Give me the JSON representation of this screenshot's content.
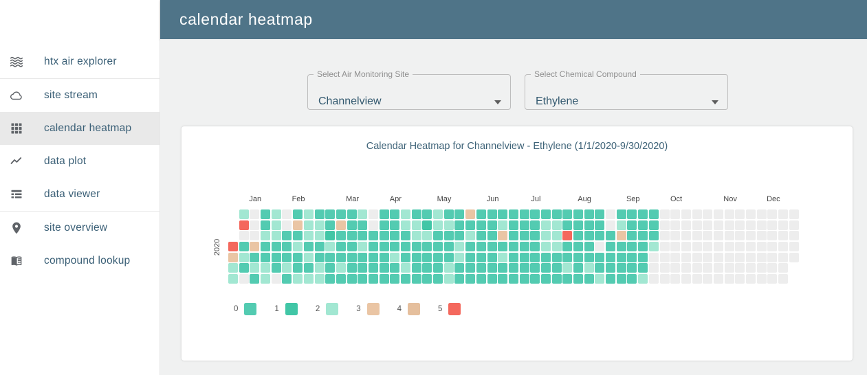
{
  "header": {
    "title": "calendar heatmap"
  },
  "sidebar": {
    "items": [
      {
        "label": "htx air explorer",
        "icon": "waves-icon",
        "active": false,
        "divider_after": true
      },
      {
        "label": "site stream",
        "icon": "cloud-icon",
        "active": false,
        "divider_after": false
      },
      {
        "label": "calendar heatmap",
        "icon": "grid-icon",
        "active": true,
        "divider_after": false
      },
      {
        "label": "data plot",
        "icon": "line-chart-icon",
        "active": false,
        "divider_after": false
      },
      {
        "label": "data viewer",
        "icon": "list-icon",
        "active": false,
        "divider_after": true
      },
      {
        "label": "site overview",
        "icon": "location-pin-icon",
        "active": false,
        "divider_after": false
      },
      {
        "label": "compound lookup",
        "icon": "book-icon",
        "active": false,
        "divider_after": false
      }
    ]
  },
  "filters": {
    "site_select": {
      "label": "Select Air Monitoring Site",
      "value": "Channelview"
    },
    "compound_select": {
      "label": "Select Chemical Compound",
      "value": "Ethylene"
    }
  },
  "chart_data": {
    "type": "heatmap",
    "title": "Calendar Heatmap for Channelview - Ethylene (1/1/2020-9/30/2020)",
    "year_label": "2020",
    "start_date": "1/1/2020",
    "end_date": "9/30/2020",
    "week_starts": "Sunday",
    "jan1_weekday_index": 3,
    "month_labels": [
      "Jan",
      "Feb",
      "Mar",
      "Apr",
      "May",
      "Jun",
      "Jul",
      "Aug",
      "Sep",
      "Oct",
      "Nov",
      "Dec"
    ],
    "days_in_month": [
      31,
      29,
      31,
      30,
      31,
      30,
      31,
      31,
      30,
      31,
      30,
      31
    ],
    "values_by_month": {
      "Jan": [
        5,
        3,
        2,
        2,
        2,
        5,
        null,
        0,
        2,
        0,
        null,
        null,
        null,
        null,
        3,
        0,
        2,
        0,
        0,
        0,
        2,
        0,
        0,
        2,
        2,
        2,
        2,
        2,
        0,
        0,
        0
      ],
      "Feb": [
        null,
        null,
        null,
        0,
        0,
        0,
        2,
        0,
        0,
        3,
        0,
        2,
        0,
        0,
        2,
        2,
        2,
        2,
        0,
        2,
        0,
        2,
        0,
        2,
        2,
        0,
        0,
        2,
        2
      ],
      "Mar": [
        0,
        0,
        1,
        2,
        0,
        0,
        0,
        0,
        3,
        0,
        0,
        0,
        2,
        0,
        0,
        0,
        0,
        0,
        0,
        0,
        0,
        2,
        0,
        0,
        2,
        0,
        0,
        0,
        null,
        null,
        0
      ],
      "Apr": [
        0,
        0,
        0,
        0,
        0,
        0,
        0,
        0,
        0,
        0,
        0,
        0,
        0,
        0,
        0,
        2,
        0,
        0,
        2,
        2,
        0,
        0,
        0,
        2,
        0,
        0,
        2,
        2,
        0,
        0
      ],
      "May": [
        0,
        0,
        0,
        1,
        2,
        0,
        0,
        0,
        0,
        2,
        2,
        0,
        0,
        0,
        0,
        0,
        0,
        2,
        0,
        0,
        0,
        2,
        2,
        0,
        0,
        0,
        2,
        2,
        0,
        0,
        3
      ],
      "Jun": [
        0,
        2,
        0,
        0,
        0,
        0,
        0,
        0,
        0,
        0,
        0,
        0,
        0,
        0,
        0,
        0,
        0,
        0,
        0,
        0,
        0,
        2,
        3,
        0,
        2,
        0,
        0,
        0,
        0,
        0
      ],
      "Jul": [
        0,
        0,
        0,
        0,
        0,
        0,
        0,
        0,
        0,
        0,
        0,
        0,
        0,
        0,
        0,
        0,
        0,
        0,
        0,
        2,
        2,
        2,
        0,
        0,
        0,
        0,
        2,
        2,
        2,
        0,
        0
      ],
      "Aug": [
        0,
        0,
        0,
        5,
        0,
        0,
        2,
        0,
        0,
        0,
        0,
        0,
        0,
        0,
        0,
        0,
        0,
        0,
        0,
        0,
        2,
        0,
        0,
        0,
        0,
        null,
        0,
        0,
        2,
        null,
        null
      ],
      "Sep": [
        0,
        0,
        0,
        0,
        0,
        0,
        2,
        3,
        0,
        0,
        0,
        0,
        0,
        0,
        0,
        0,
        0,
        0,
        0,
        0,
        0,
        0,
        0,
        0,
        0,
        2,
        0,
        0,
        0,
        2
      ]
    },
    "legend": [
      {
        "label": "0",
        "color": "#53cbb1"
      },
      {
        "label": "1",
        "color": "#41c6a6"
      },
      {
        "label": "2",
        "color": "#a2e7d2"
      },
      {
        "label": "3",
        "color": "#eac5a4"
      },
      {
        "label": "4",
        "color": "#e5bf9d"
      },
      {
        "label": "5",
        "color": "#f4685d"
      }
    ],
    "missing_color": "#ededed"
  },
  "colors": {
    "header_bg": "#4f7488",
    "page_bg": "#f0f1f1",
    "sidebar_text": "#3a5f76",
    "accent_text": "#3e6378",
    "active_item_bg": "#e9e9e9"
  }
}
